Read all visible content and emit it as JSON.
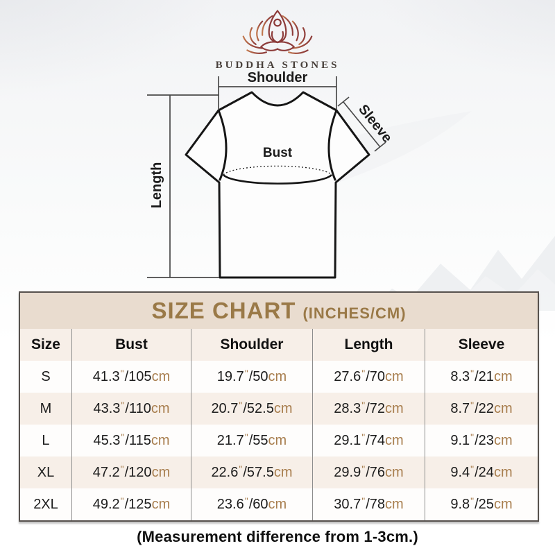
{
  "brand": {
    "name": "BUDDHA STONES",
    "logo_icon": "lotus-meditation-icon"
  },
  "diagram": {
    "labels": {
      "shoulder": "Shoulder",
      "sleeve": "Sleeve",
      "bust": "Bust",
      "length": "Length"
    }
  },
  "table": {
    "title": "SIZE CHART",
    "subtitle": "(INCHES/CM)",
    "headers": [
      "Size",
      "Bust",
      "Shoulder",
      "Length",
      "Sleeve"
    ],
    "rows": [
      {
        "size": "S",
        "bust": {
          "in": "41.3",
          "cm": "105"
        },
        "shoulder": {
          "in": "19.7",
          "cm": "50"
        },
        "length": {
          "in": "27.6",
          "cm": "70"
        },
        "sleeve": {
          "in": "8.3",
          "cm": "21"
        }
      },
      {
        "size": "M",
        "bust": {
          "in": "43.3",
          "cm": "110"
        },
        "shoulder": {
          "in": "20.7",
          "cm": "52.5"
        },
        "length": {
          "in": "28.3",
          "cm": "72"
        },
        "sleeve": {
          "in": "8.7",
          "cm": "22"
        }
      },
      {
        "size": "L",
        "bust": {
          "in": "45.3",
          "cm": "115"
        },
        "shoulder": {
          "in": "21.7",
          "cm": "55"
        },
        "length": {
          "in": "29.1",
          "cm": "74"
        },
        "sleeve": {
          "in": "9.1",
          "cm": "23"
        }
      },
      {
        "size": "XL",
        "bust": {
          "in": "47.2",
          "cm": "120"
        },
        "shoulder": {
          "in": "22.6",
          "cm": "57.5"
        },
        "length": {
          "in": "29.9",
          "cm": "76"
        },
        "sleeve": {
          "in": "9.4",
          "cm": "24"
        }
      },
      {
        "size": "2XL",
        "bust": {
          "in": "49.2",
          "cm": "125"
        },
        "shoulder": {
          "in": "23.6",
          "cm": "60"
        },
        "length": {
          "in": "30.7",
          "cm": "78"
        },
        "sleeve": {
          "in": "9.8",
          "cm": "25"
        }
      }
    ],
    "inch_mark": "\"",
    "unit_label": "cm"
  },
  "footer": {
    "note": "(Measurement difference from 1-3cm.)"
  },
  "colors": {
    "title_gold": "#9a7947",
    "band_bg": "#e9dccf",
    "row_beige": "#f7efe8",
    "accent_brown": "#a87e4e",
    "logo_maroon": "#8d3c3a",
    "border_dark": "#56514d"
  },
  "chart_data": {
    "type": "table",
    "title": "SIZE CHART (INCHES/CM)",
    "columns": [
      "Size",
      "Bust",
      "Shoulder",
      "Length",
      "Sleeve"
    ],
    "rows_inches": [
      [
        "S",
        41.3,
        19.7,
        27.6,
        8.3
      ],
      [
        "M",
        43.3,
        20.7,
        28.3,
        8.7
      ],
      [
        "L",
        45.3,
        21.7,
        29.1,
        9.1
      ],
      [
        "XL",
        47.2,
        22.6,
        29.9,
        9.4
      ],
      [
        "2XL",
        49.2,
        23.6,
        30.7,
        9.8
      ]
    ],
    "rows_cm": [
      [
        "S",
        105,
        50,
        70,
        21
      ],
      [
        "M",
        110,
        52.5,
        72,
        22
      ],
      [
        "L",
        115,
        55,
        74,
        23
      ],
      [
        "XL",
        120,
        57.5,
        76,
        24
      ],
      [
        "2XL",
        125,
        60,
        78,
        25
      ]
    ]
  }
}
